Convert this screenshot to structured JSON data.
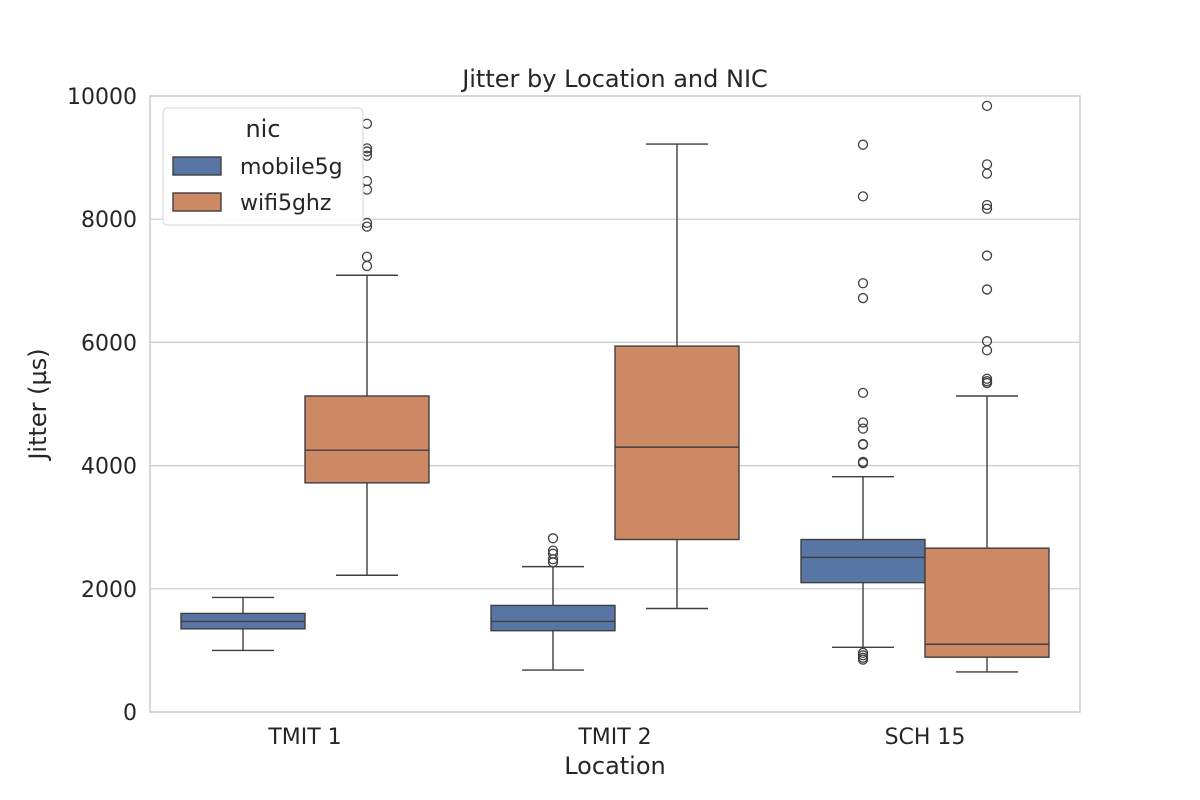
{
  "chart_data": {
    "type": "box",
    "title": "Jitter by Location and NIC",
    "xlabel": "Location",
    "ylabel": "Jitter (µs)",
    "ylim": [
      0,
      10000
    ],
    "yticks": [
      0,
      2000,
      4000,
      6000,
      8000,
      10000
    ],
    "grid": "y",
    "categories": [
      "TMIT 1",
      "TMIT 2",
      "SCH 15"
    ],
    "legend": {
      "title": "nic",
      "position": "top-left"
    },
    "series": [
      {
        "name": "mobile5g",
        "color": "#5875a4",
        "boxes": [
          {
            "whislo": 1000,
            "q1": 1350,
            "med": 1470,
            "q3": 1600,
            "whishi": 1860,
            "fliers": []
          },
          {
            "whislo": 680,
            "q1": 1320,
            "med": 1470,
            "q3": 1730,
            "whishi": 2360,
            "fliers": [
              2430,
              2480,
              2570,
              2620,
              2820
            ]
          },
          {
            "whislo": 1050,
            "q1": 2100,
            "med": 2510,
            "q3": 2800,
            "whishi": 3820,
            "fliers": [
              850,
              880,
              920,
              960,
              4040,
              4060,
              4340,
              4350,
              4600,
              4700,
              5180,
              6720,
              6960,
              8370,
              9210
            ]
          }
        ]
      },
      {
        "name": "wifi5ghz",
        "color": "#cc8963",
        "boxes": [
          {
            "whislo": 2220,
            "q1": 3720,
            "med": 4250,
            "q3": 5130,
            "whishi": 7090,
            "fliers": [
              7240,
              7390,
              7880,
              7940,
              8480,
              8620,
              9030,
              9100,
              9150,
              9550
            ]
          },
          {
            "whislo": 1680,
            "q1": 2800,
            "med": 4300,
            "q3": 5940,
            "whishi": 9220,
            "fliers": []
          },
          {
            "whislo": 650,
            "q1": 890,
            "med": 1100,
            "q3": 2660,
            "whishi": 5130,
            "fliers": [
              5340,
              5370,
              5410,
              5870,
              6020,
              6860,
              7410,
              8170,
              8230,
              8740,
              8890,
              9840
            ]
          }
        ]
      }
    ]
  }
}
